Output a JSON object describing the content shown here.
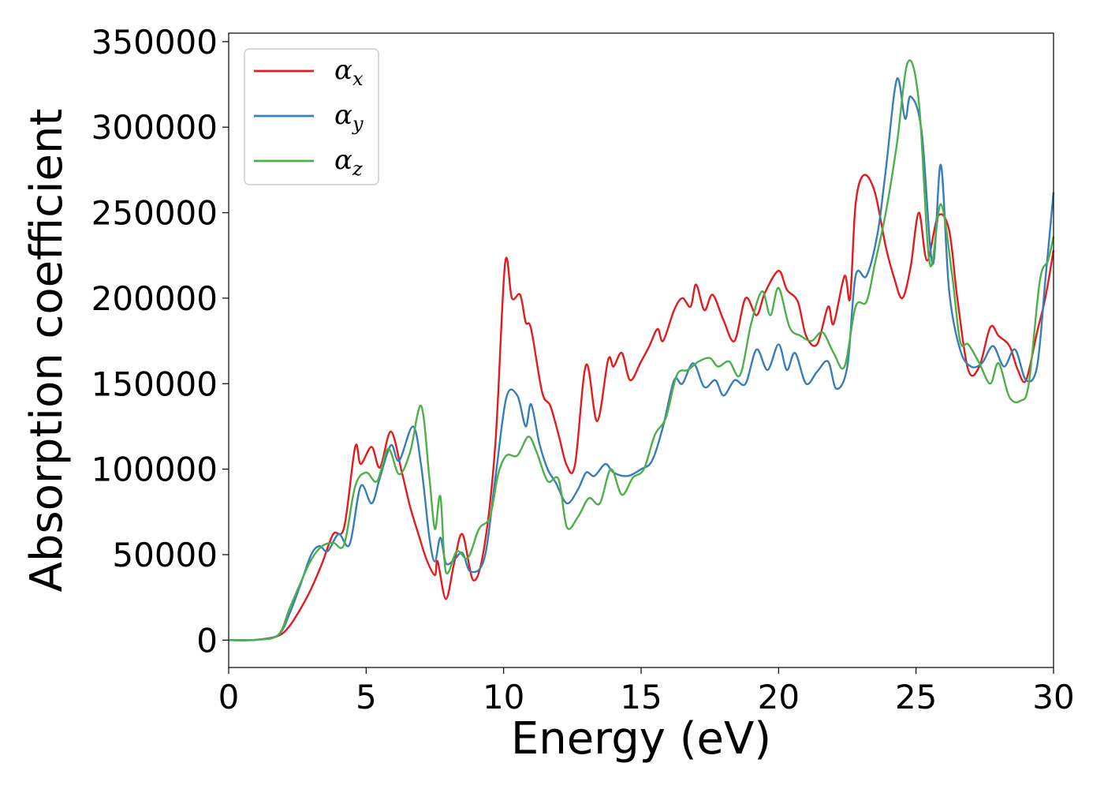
{
  "chart_data": {
    "type": "line",
    "title": "",
    "xlabel": "Energy (eV)",
    "ylabel": "Absorption coefficient",
    "xlim": [
      0,
      30
    ],
    "ylim": [
      -16000,
      355000
    ],
    "x_ticks": [
      0,
      5,
      10,
      15,
      20,
      25,
      30
    ],
    "y_ticks": [
      0,
      50000,
      100000,
      150000,
      200000,
      250000,
      300000,
      350000
    ],
    "x_tick_labels": [
      "0",
      "5",
      "10",
      "15",
      "20",
      "25",
      "30"
    ],
    "y_tick_labels": [
      "0",
      "50000",
      "100000",
      "150000",
      "200000",
      "250000",
      "300000",
      "350000"
    ],
    "grid": false,
    "legend_position": "top-left",
    "series": [
      {
        "name": "αx",
        "legend_main": "α",
        "legend_sub": "x",
        "color": "#e41a1c",
        "points": [
          [
            0,
            0
          ],
          [
            1.0,
            200
          ],
          [
            1.8,
            2500
          ],
          [
            2.2,
            8000
          ],
          [
            2.6,
            18000
          ],
          [
            3.0,
            30000
          ],
          [
            3.4,
            45000
          ],
          [
            3.8,
            62000
          ],
          [
            4.2,
            66000
          ],
          [
            4.6,
            113000
          ],
          [
            4.8,
            103000
          ],
          [
            5.2,
            113000
          ],
          [
            5.5,
            101000
          ],
          [
            5.9,
            122000
          ],
          [
            6.3,
            98000
          ],
          [
            6.6,
            78000
          ],
          [
            6.9,
            62000
          ],
          [
            7.2,
            47000
          ],
          [
            7.5,
            38000
          ],
          [
            7.6,
            46000
          ],
          [
            7.9,
            24000
          ],
          [
            8.2,
            45000
          ],
          [
            8.5,
            62000
          ],
          [
            8.9,
            35000
          ],
          [
            9.3,
            55000
          ],
          [
            9.7,
            115000
          ],
          [
            10.05,
            220000
          ],
          [
            10.3,
            200000
          ],
          [
            10.6,
            202000
          ],
          [
            10.8,
            186000
          ],
          [
            11.0,
            182000
          ],
          [
            11.4,
            145000
          ],
          [
            11.7,
            137000
          ],
          [
            12.0,
            120000
          ],
          [
            12.3,
            102000
          ],
          [
            12.6,
            103000
          ],
          [
            13.0,
            161000
          ],
          [
            13.4,
            128000
          ],
          [
            13.8,
            164000
          ],
          [
            14.0,
            160000
          ],
          [
            14.3,
            168000
          ],
          [
            14.6,
            152000
          ],
          [
            15.0,
            163000
          ],
          [
            15.3,
            172000
          ],
          [
            15.6,
            182000
          ],
          [
            15.8,
            175000
          ],
          [
            16.2,
            193000
          ],
          [
            16.5,
            200000
          ],
          [
            16.8,
            195000
          ],
          [
            17.0,
            208000
          ],
          [
            17.3,
            193000
          ],
          [
            17.6,
            202000
          ],
          [
            18.0,
            187000
          ],
          [
            18.4,
            175000
          ],
          [
            18.8,
            200000
          ],
          [
            19.2,
            190000
          ],
          [
            19.5,
            203000
          ],
          [
            20.0,
            216000
          ],
          [
            20.3,
            205000
          ],
          [
            20.7,
            198000
          ],
          [
            21.0,
            178000
          ],
          [
            21.4,
            173000
          ],
          [
            21.8,
            195000
          ],
          [
            22.0,
            185000
          ],
          [
            22.4,
            213000
          ],
          [
            22.6,
            200000
          ],
          [
            22.8,
            255000
          ],
          [
            23.1,
            272000
          ],
          [
            23.5,
            262000
          ],
          [
            23.9,
            230000
          ],
          [
            24.2,
            212000
          ],
          [
            24.5,
            200000
          ],
          [
            24.8,
            218000
          ],
          [
            25.1,
            250000
          ],
          [
            25.4,
            222000
          ],
          [
            25.8,
            248000
          ],
          [
            26.2,
            240000
          ],
          [
            26.5,
            200000
          ],
          [
            26.9,
            158000
          ],
          [
            27.3,
            160000
          ],
          [
            27.7,
            183000
          ],
          [
            28.0,
            178000
          ],
          [
            28.4,
            172000
          ],
          [
            28.7,
            158000
          ],
          [
            29.0,
            152000
          ],
          [
            29.4,
            180000
          ],
          [
            29.7,
            200000
          ],
          [
            30.0,
            228000
          ]
        ]
      },
      {
        "name": "αy",
        "legend_main": "α",
        "legend_sub": "y",
        "color": "#377eb8",
        "points": [
          [
            0,
            0
          ],
          [
            1.0,
            200
          ],
          [
            1.8,
            3000
          ],
          [
            2.2,
            15000
          ],
          [
            2.6,
            32000
          ],
          [
            3.0,
            50000
          ],
          [
            3.3,
            55000
          ],
          [
            3.6,
            52000
          ],
          [
            4.0,
            62000
          ],
          [
            4.4,
            56000
          ],
          [
            4.8,
            90000
          ],
          [
            5.2,
            80000
          ],
          [
            5.5,
            95000
          ],
          [
            5.9,
            114000
          ],
          [
            6.2,
            105000
          ],
          [
            6.7,
            125000
          ],
          [
            7.0,
            102000
          ],
          [
            7.3,
            60000
          ],
          [
            7.5,
            46000
          ],
          [
            7.7,
            60000
          ],
          [
            7.9,
            45000
          ],
          [
            8.2,
            47000
          ],
          [
            8.5,
            51000
          ],
          [
            8.8,
            40000
          ],
          [
            9.3,
            48000
          ],
          [
            9.7,
            95000
          ],
          [
            10.1,
            142000
          ],
          [
            10.5,
            143000
          ],
          [
            10.8,
            125000
          ],
          [
            11.0,
            138000
          ],
          [
            11.3,
            115000
          ],
          [
            11.6,
            100000
          ],
          [
            11.9,
            92000
          ],
          [
            12.3,
            80000
          ],
          [
            12.7,
            88000
          ],
          [
            13.0,
            98000
          ],
          [
            13.3,
            96000
          ],
          [
            13.7,
            103000
          ],
          [
            14.0,
            98000
          ],
          [
            14.5,
            96000
          ],
          [
            15.0,
            100000
          ],
          [
            15.4,
            105000
          ],
          [
            15.8,
            125000
          ],
          [
            16.2,
            152000
          ],
          [
            16.5,
            150000
          ],
          [
            16.9,
            162000
          ],
          [
            17.3,
            148000
          ],
          [
            17.7,
            152000
          ],
          [
            18.0,
            143000
          ],
          [
            18.4,
            152000
          ],
          [
            18.8,
            150000
          ],
          [
            19.2,
            170000
          ],
          [
            19.6,
            158000
          ],
          [
            20.0,
            173000
          ],
          [
            20.3,
            158000
          ],
          [
            20.6,
            168000
          ],
          [
            21.0,
            150000
          ],
          [
            21.4,
            157000
          ],
          [
            21.8,
            163000
          ],
          [
            22.1,
            147000
          ],
          [
            22.5,
            160000
          ],
          [
            22.8,
            213000
          ],
          [
            23.2,
            213000
          ],
          [
            23.6,
            238000
          ],
          [
            23.9,
            275000
          ],
          [
            24.3,
            328000
          ],
          [
            24.6,
            305000
          ],
          [
            24.8,
            318000
          ],
          [
            25.2,
            298000
          ],
          [
            25.6,
            220000
          ],
          [
            25.9,
            278000
          ],
          [
            26.2,
            205000
          ],
          [
            26.6,
            170000
          ],
          [
            27.0,
            160000
          ],
          [
            27.4,
            162000
          ],
          [
            27.8,
            172000
          ],
          [
            28.2,
            160000
          ],
          [
            28.6,
            170000
          ],
          [
            29.0,
            152000
          ],
          [
            29.4,
            160000
          ],
          [
            29.7,
            210000
          ],
          [
            30.0,
            262000
          ]
        ]
      },
      {
        "name": "αz",
        "legend_main": "α",
        "legend_sub": "z",
        "color": "#4daf4a",
        "points": [
          [
            0,
            0
          ],
          [
            1.0,
            200
          ],
          [
            1.8,
            3000
          ],
          [
            2.2,
            18000
          ],
          [
            2.6,
            33000
          ],
          [
            3.0,
            47000
          ],
          [
            3.4,
            55000
          ],
          [
            3.8,
            57000
          ],
          [
            4.2,
            56000
          ],
          [
            4.6,
            90000
          ],
          [
            5.0,
            98000
          ],
          [
            5.4,
            93000
          ],
          [
            5.8,
            112000
          ],
          [
            6.2,
            97000
          ],
          [
            6.6,
            110000
          ],
          [
            7.0,
            137000
          ],
          [
            7.3,
            95000
          ],
          [
            7.5,
            65000
          ],
          [
            7.7,
            84000
          ],
          [
            7.9,
            40000
          ],
          [
            8.3,
            52000
          ],
          [
            8.7,
            48000
          ],
          [
            9.1,
            65000
          ],
          [
            9.5,
            72000
          ],
          [
            9.8,
            97000
          ],
          [
            10.1,
            108000
          ],
          [
            10.5,
            108000
          ],
          [
            10.9,
            119000
          ],
          [
            11.2,
            110000
          ],
          [
            11.6,
            93000
          ],
          [
            12.0,
            94000
          ],
          [
            12.3,
            66000
          ],
          [
            12.7,
            72000
          ],
          [
            13.1,
            83000
          ],
          [
            13.5,
            80000
          ],
          [
            13.9,
            100000
          ],
          [
            14.3,
            85000
          ],
          [
            14.7,
            95000
          ],
          [
            15.1,
            100000
          ],
          [
            15.5,
            120000
          ],
          [
            15.9,
            130000
          ],
          [
            16.3,
            155000
          ],
          [
            16.7,
            158000
          ],
          [
            17.1,
            163000
          ],
          [
            17.5,
            165000
          ],
          [
            17.8,
            160000
          ],
          [
            18.2,
            163000
          ],
          [
            18.6,
            155000
          ],
          [
            19.0,
            185000
          ],
          [
            19.4,
            204000
          ],
          [
            19.7,
            190000
          ],
          [
            20.0,
            206000
          ],
          [
            20.4,
            183000
          ],
          [
            20.8,
            178000
          ],
          [
            21.2,
            175000
          ],
          [
            21.6,
            180000
          ],
          [
            22.0,
            168000
          ],
          [
            22.4,
            160000
          ],
          [
            22.8,
            195000
          ],
          [
            23.2,
            198000
          ],
          [
            23.5,
            220000
          ],
          [
            23.9,
            250000
          ],
          [
            24.3,
            290000
          ],
          [
            24.7,
            338000
          ],
          [
            25.1,
            315000
          ],
          [
            25.5,
            220000
          ],
          [
            25.9,
            255000
          ],
          [
            26.3,
            215000
          ],
          [
            26.6,
            175000
          ],
          [
            26.9,
            173000
          ],
          [
            27.3,
            162000
          ],
          [
            27.7,
            150000
          ],
          [
            28.0,
            162000
          ],
          [
            28.4,
            142000
          ],
          [
            28.8,
            140000
          ],
          [
            29.1,
            150000
          ],
          [
            29.5,
            210000
          ],
          [
            29.8,
            222000
          ],
          [
            30.0,
            236000
          ]
        ]
      }
    ]
  }
}
